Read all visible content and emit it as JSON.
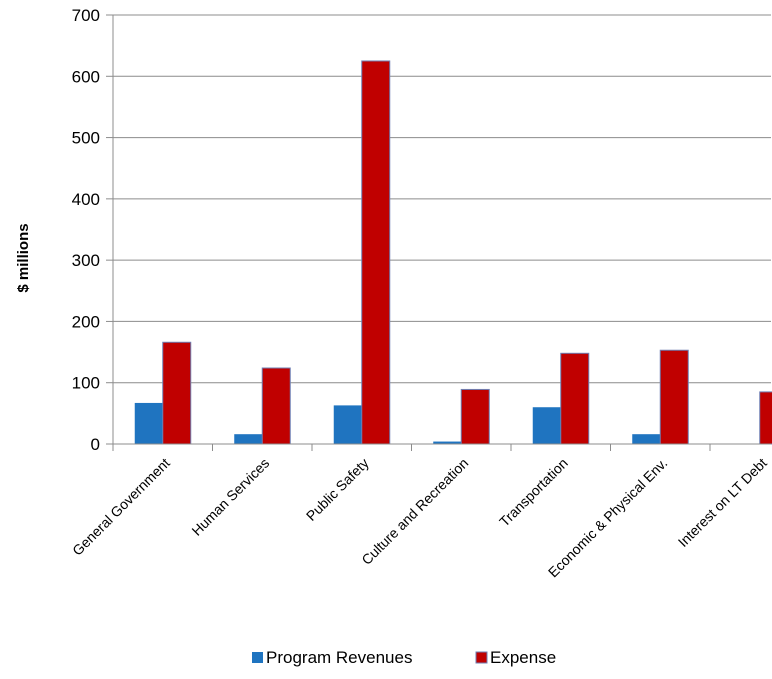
{
  "chart_data": {
    "type": "bar",
    "title": "",
    "xlabel": "",
    "ylabel": "$ millions",
    "ylim": [
      0,
      700
    ],
    "yticks": [
      0,
      100,
      200,
      300,
      400,
      500,
      600,
      700
    ],
    "grid": true,
    "legend_position": "bottom",
    "categories": [
      "General Government",
      "Human Services",
      "Public Safety",
      "Culture and Recreation",
      "Transportation",
      "Economic & Physical Env.",
      "Interest on LT Debt"
    ],
    "series": [
      {
        "name": "Program Revenues",
        "color": "#1f74c0",
        "values": [
          67,
          16,
          63,
          4,
          60,
          16,
          0
        ]
      },
      {
        "name": "Expense",
        "color": "#c00000",
        "values": [
          166,
          124,
          625,
          89,
          148,
          153,
          85
        ]
      }
    ]
  }
}
